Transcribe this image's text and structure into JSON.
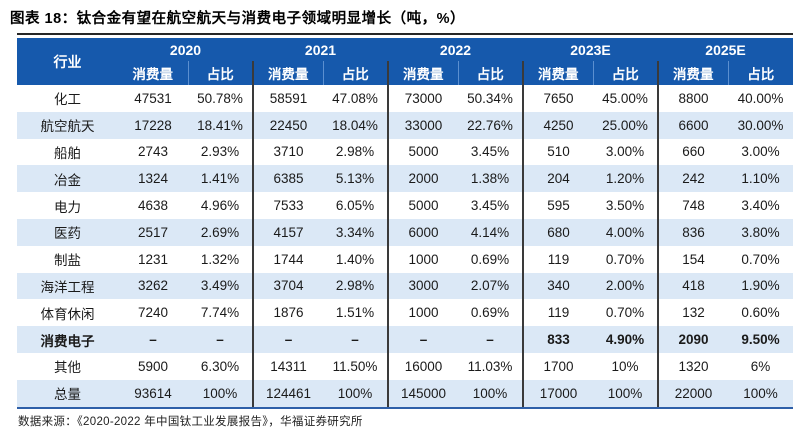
{
  "title": "图表 18：钛合金有望在航空航天与消费电子领域明显增长（吨，%）",
  "source": "数据来源：《2020-2022 年中国钛工业发展报告》，华福证券研究所",
  "colors": {
    "header_bg": "#1659ac",
    "alt_row_bg": "#dbe8f6",
    "title_rule": "#262626",
    "bottom_rule": "#2e5fa8",
    "group_divider": "#3a3a3a",
    "subheader_divider": "#5b8fd0"
  },
  "chart_data": {
    "type": "table",
    "industry_header": "行业",
    "year_groups": [
      "2020",
      "2021",
      "2022",
      "2023E",
      "2025E"
    ],
    "sub_headers": [
      "消费量",
      "占比"
    ],
    "rows": [
      {
        "industry": "化工",
        "bold": false,
        "values": [
          "47531",
          "50.78%",
          "58591",
          "47.08%",
          "73000",
          "50.34%",
          "7650",
          "45.00%",
          "8800",
          "40.00%"
        ]
      },
      {
        "industry": "航空航天",
        "bold": false,
        "values": [
          "17228",
          "18.41%",
          "22450",
          "18.04%",
          "33000",
          "22.76%",
          "4250",
          "25.00%",
          "6600",
          "30.00%"
        ]
      },
      {
        "industry": "船舶",
        "bold": false,
        "values": [
          "2743",
          "2.93%",
          "3710",
          "2.98%",
          "5000",
          "3.45%",
          "510",
          "3.00%",
          "660",
          "3.00%"
        ]
      },
      {
        "industry": "冶金",
        "bold": false,
        "values": [
          "1324",
          "1.41%",
          "6385",
          "5.13%",
          "2000",
          "1.38%",
          "204",
          "1.20%",
          "242",
          "1.10%"
        ]
      },
      {
        "industry": "电力",
        "bold": false,
        "values": [
          "4638",
          "4.96%",
          "7533",
          "6.05%",
          "5000",
          "3.45%",
          "595",
          "3.50%",
          "748",
          "3.40%"
        ]
      },
      {
        "industry": "医药",
        "bold": false,
        "values": [
          "2517",
          "2.69%",
          "4157",
          "3.34%",
          "6000",
          "4.14%",
          "680",
          "4.00%",
          "836",
          "3.80%"
        ]
      },
      {
        "industry": "制盐",
        "bold": false,
        "values": [
          "1231",
          "1.32%",
          "1744",
          "1.40%",
          "1000",
          "0.69%",
          "119",
          "0.70%",
          "154",
          "0.70%"
        ]
      },
      {
        "industry": "海洋工程",
        "bold": false,
        "values": [
          "3262",
          "3.49%",
          "3704",
          "2.98%",
          "3000",
          "2.07%",
          "340",
          "2.00%",
          "418",
          "1.90%"
        ]
      },
      {
        "industry": "体育休闲",
        "bold": false,
        "values": [
          "7240",
          "7.74%",
          "1876",
          "1.51%",
          "1000",
          "0.69%",
          "119",
          "0.70%",
          "132",
          "0.60%"
        ]
      },
      {
        "industry": "消费电子",
        "bold": true,
        "values": [
          "–",
          "–",
          "–",
          "–",
          "–",
          "–",
          "833",
          "4.90%",
          "2090",
          "9.50%"
        ]
      },
      {
        "industry": "其他",
        "bold": false,
        "values": [
          "5900",
          "6.30%",
          "14311",
          "11.50%",
          "16000",
          "11.03%",
          "1700",
          "10%",
          "1320",
          "6%"
        ]
      },
      {
        "industry": "总量",
        "bold": false,
        "values": [
          "93614",
          "100%",
          "124461",
          "100%",
          "145000",
          "100%",
          "17000",
          "100%",
          "22000",
          "100%"
        ]
      }
    ]
  }
}
